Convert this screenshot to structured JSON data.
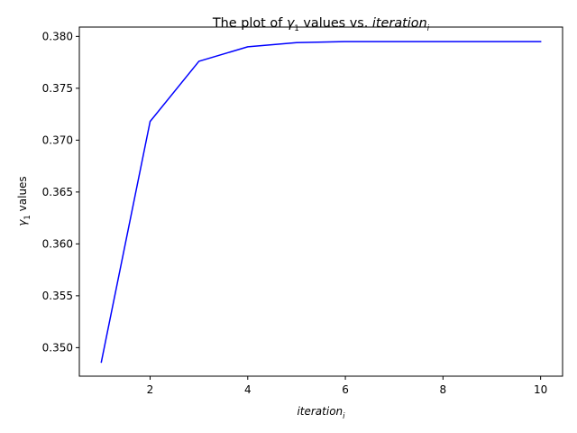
{
  "chart_data": {
    "type": "line",
    "title": {
      "prefix": "The plot of ",
      "var1": "γ",
      "var1_sub": "1",
      "middle": " values vs. ",
      "var2": "iteration",
      "var2_sub": "i"
    },
    "xlabel": {
      "var": "iteration",
      "sub": "i"
    },
    "ylabel": {
      "var": "γ",
      "sub": "1",
      "suffix": " values"
    },
    "xlim": [
      0.55,
      10.45
    ],
    "ylim": [
      0.34725,
      0.3809
    ],
    "xticks": [
      2,
      4,
      6,
      8,
      10
    ],
    "xtick_labels": [
      "2",
      "4",
      "6",
      "8",
      "10"
    ],
    "yticks": [
      0.35,
      0.355,
      0.36,
      0.365,
      0.37,
      0.375,
      0.38
    ],
    "ytick_labels": [
      "0.350",
      "0.355",
      "0.360",
      "0.365",
      "0.370",
      "0.375",
      "0.380"
    ],
    "grid": false,
    "series": [
      {
        "color": "#0000ff",
        "x": [
          1,
          2,
          3,
          4,
          5,
          6,
          7,
          8,
          9,
          10
        ],
        "y": [
          0.3486,
          0.3718,
          0.3776,
          0.379,
          0.3794,
          0.3795,
          0.3795,
          0.3795,
          0.3795,
          0.3795
        ]
      }
    ]
  }
}
